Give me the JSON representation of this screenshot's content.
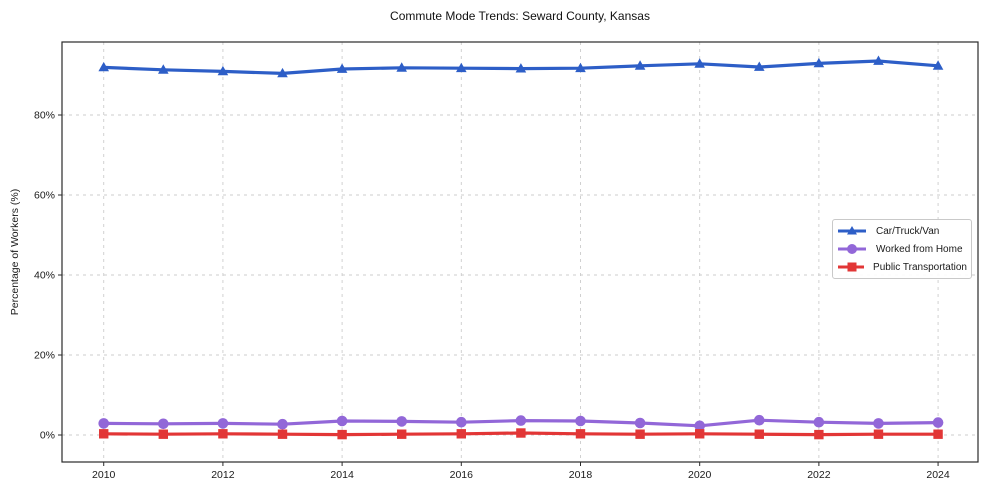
{
  "chart_data": {
    "type": "line",
    "title": "Commute Mode Trends: Seward County, Kansas",
    "xlabel": "",
    "ylabel": "Percentage of Workers (%)",
    "x": [
      2010,
      2011,
      2012,
      2013,
      2014,
      2015,
      2016,
      2017,
      2018,
      2019,
      2020,
      2021,
      2022,
      2023,
      2024
    ],
    "series": [
      {
        "name": "Car/Truck/Van",
        "marker": "triangle",
        "color": "#2d5ec7",
        "values": [
          91.9,
          91.3,
          90.9,
          90.4,
          91.5,
          91.8,
          91.7,
          91.6,
          91.7,
          92.3,
          92.8,
          92.0,
          92.9,
          93.5,
          92.3
        ]
      },
      {
        "name": "Worked from Home",
        "marker": "circle",
        "color": "#9267d8",
        "values": [
          2.9,
          2.8,
          2.9,
          2.7,
          3.5,
          3.4,
          3.2,
          3.6,
          3.5,
          3.0,
          2.3,
          3.7,
          3.2,
          2.9,
          3.1
        ]
      },
      {
        "name": "Public Transportation",
        "marker": "square",
        "color": "#e23636",
        "values": [
          0.3,
          0.2,
          0.3,
          0.2,
          0.1,
          0.2,
          0.3,
          0.5,
          0.3,
          0.2,
          0.3,
          0.2,
          0.1,
          0.2,
          0.2
        ]
      }
    ],
    "xtick_values": [
      2010,
      2012,
      2014,
      2016,
      2018,
      2020,
      2022,
      2024
    ],
    "xtick_labels": [
      "2010",
      "2012",
      "2014",
      "2016",
      "2018",
      "2020",
      "2022",
      "2024"
    ],
    "ytick_values": [
      0,
      20,
      40,
      60,
      80
    ],
    "ytick_labels": [
      "0%",
      "20%",
      "40%",
      "60%",
      "80%"
    ],
    "xlim": [
      2009.3,
      2024.67
    ],
    "ylim": [
      -6.75,
      98.25
    ],
    "grid": true,
    "legend_position": "right-center",
    "colors": {
      "grid": "#cccccc",
      "axis_frame": "#2a2a2a",
      "tick_text": "#1a1a1a",
      "background": "#ffffff"
    }
  }
}
